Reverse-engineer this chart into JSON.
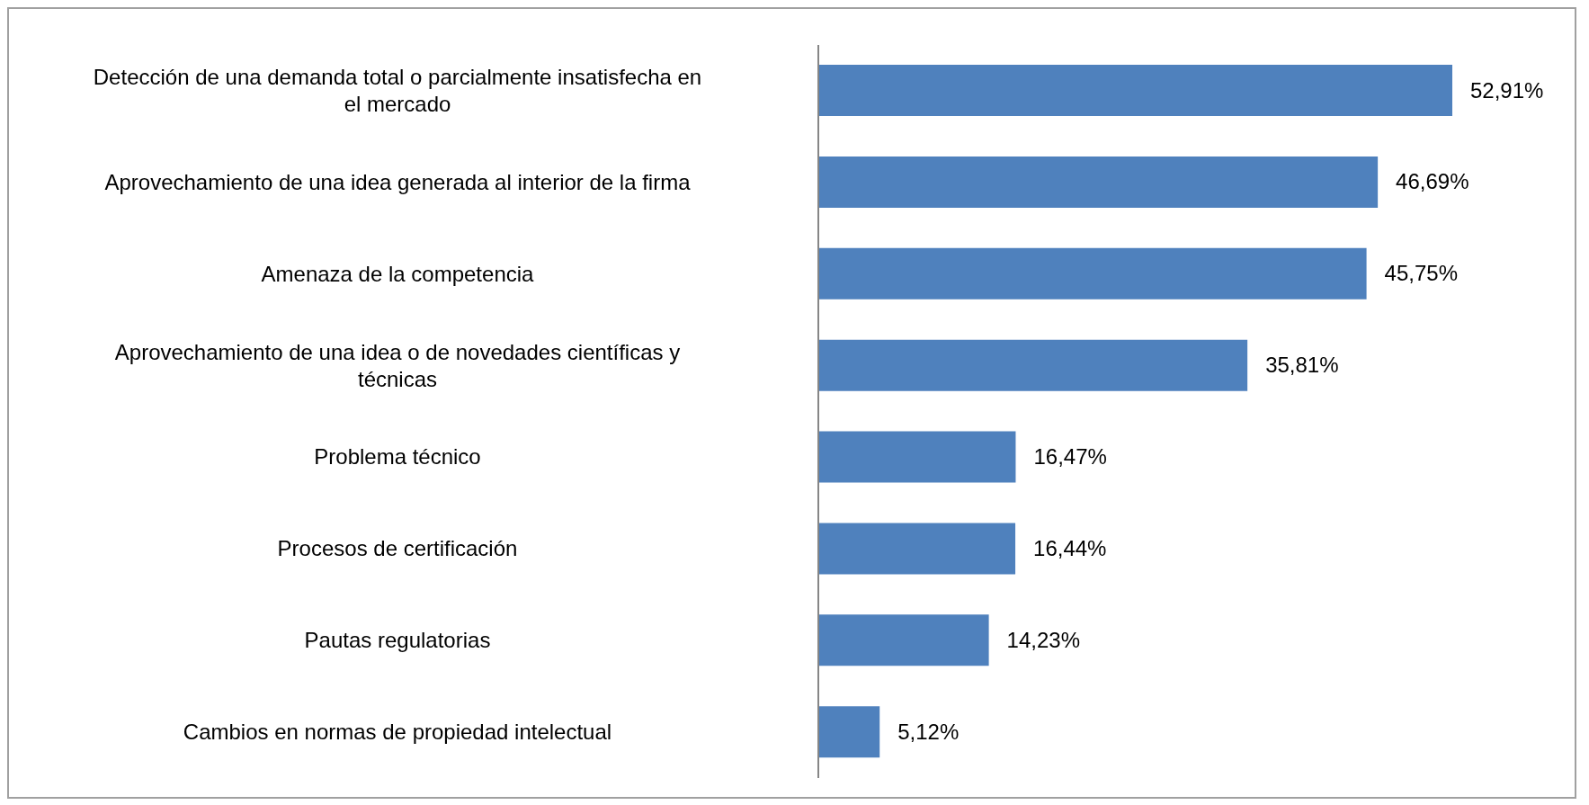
{
  "chart_data": {
    "type": "bar",
    "orientation": "horizontal",
    "categories": [
      "Detección de una demanda total o parcialmente insatisfecha en el mercado",
      "Aprovechamiento de una idea generada al interior de la firma",
      "Amenaza de la competencia",
      "Aprovechamiento de una idea o de novedades científicas y técnicas",
      "Problema técnico",
      "Procesos de certificación",
      "Pautas regulatorias",
      "Cambios en normas de propiedad intelectual"
    ],
    "values": [
      52.91,
      46.69,
      45.75,
      35.81,
      16.47,
      16.44,
      14.23,
      5.12
    ],
    "value_labels": [
      "52,91%",
      "46,69%",
      "45,75%",
      "35,81%",
      "16,47%",
      "16,44%",
      "14,23%",
      "5,12%"
    ],
    "color": "#4f81bd",
    "grid": false,
    "legend": false
  }
}
